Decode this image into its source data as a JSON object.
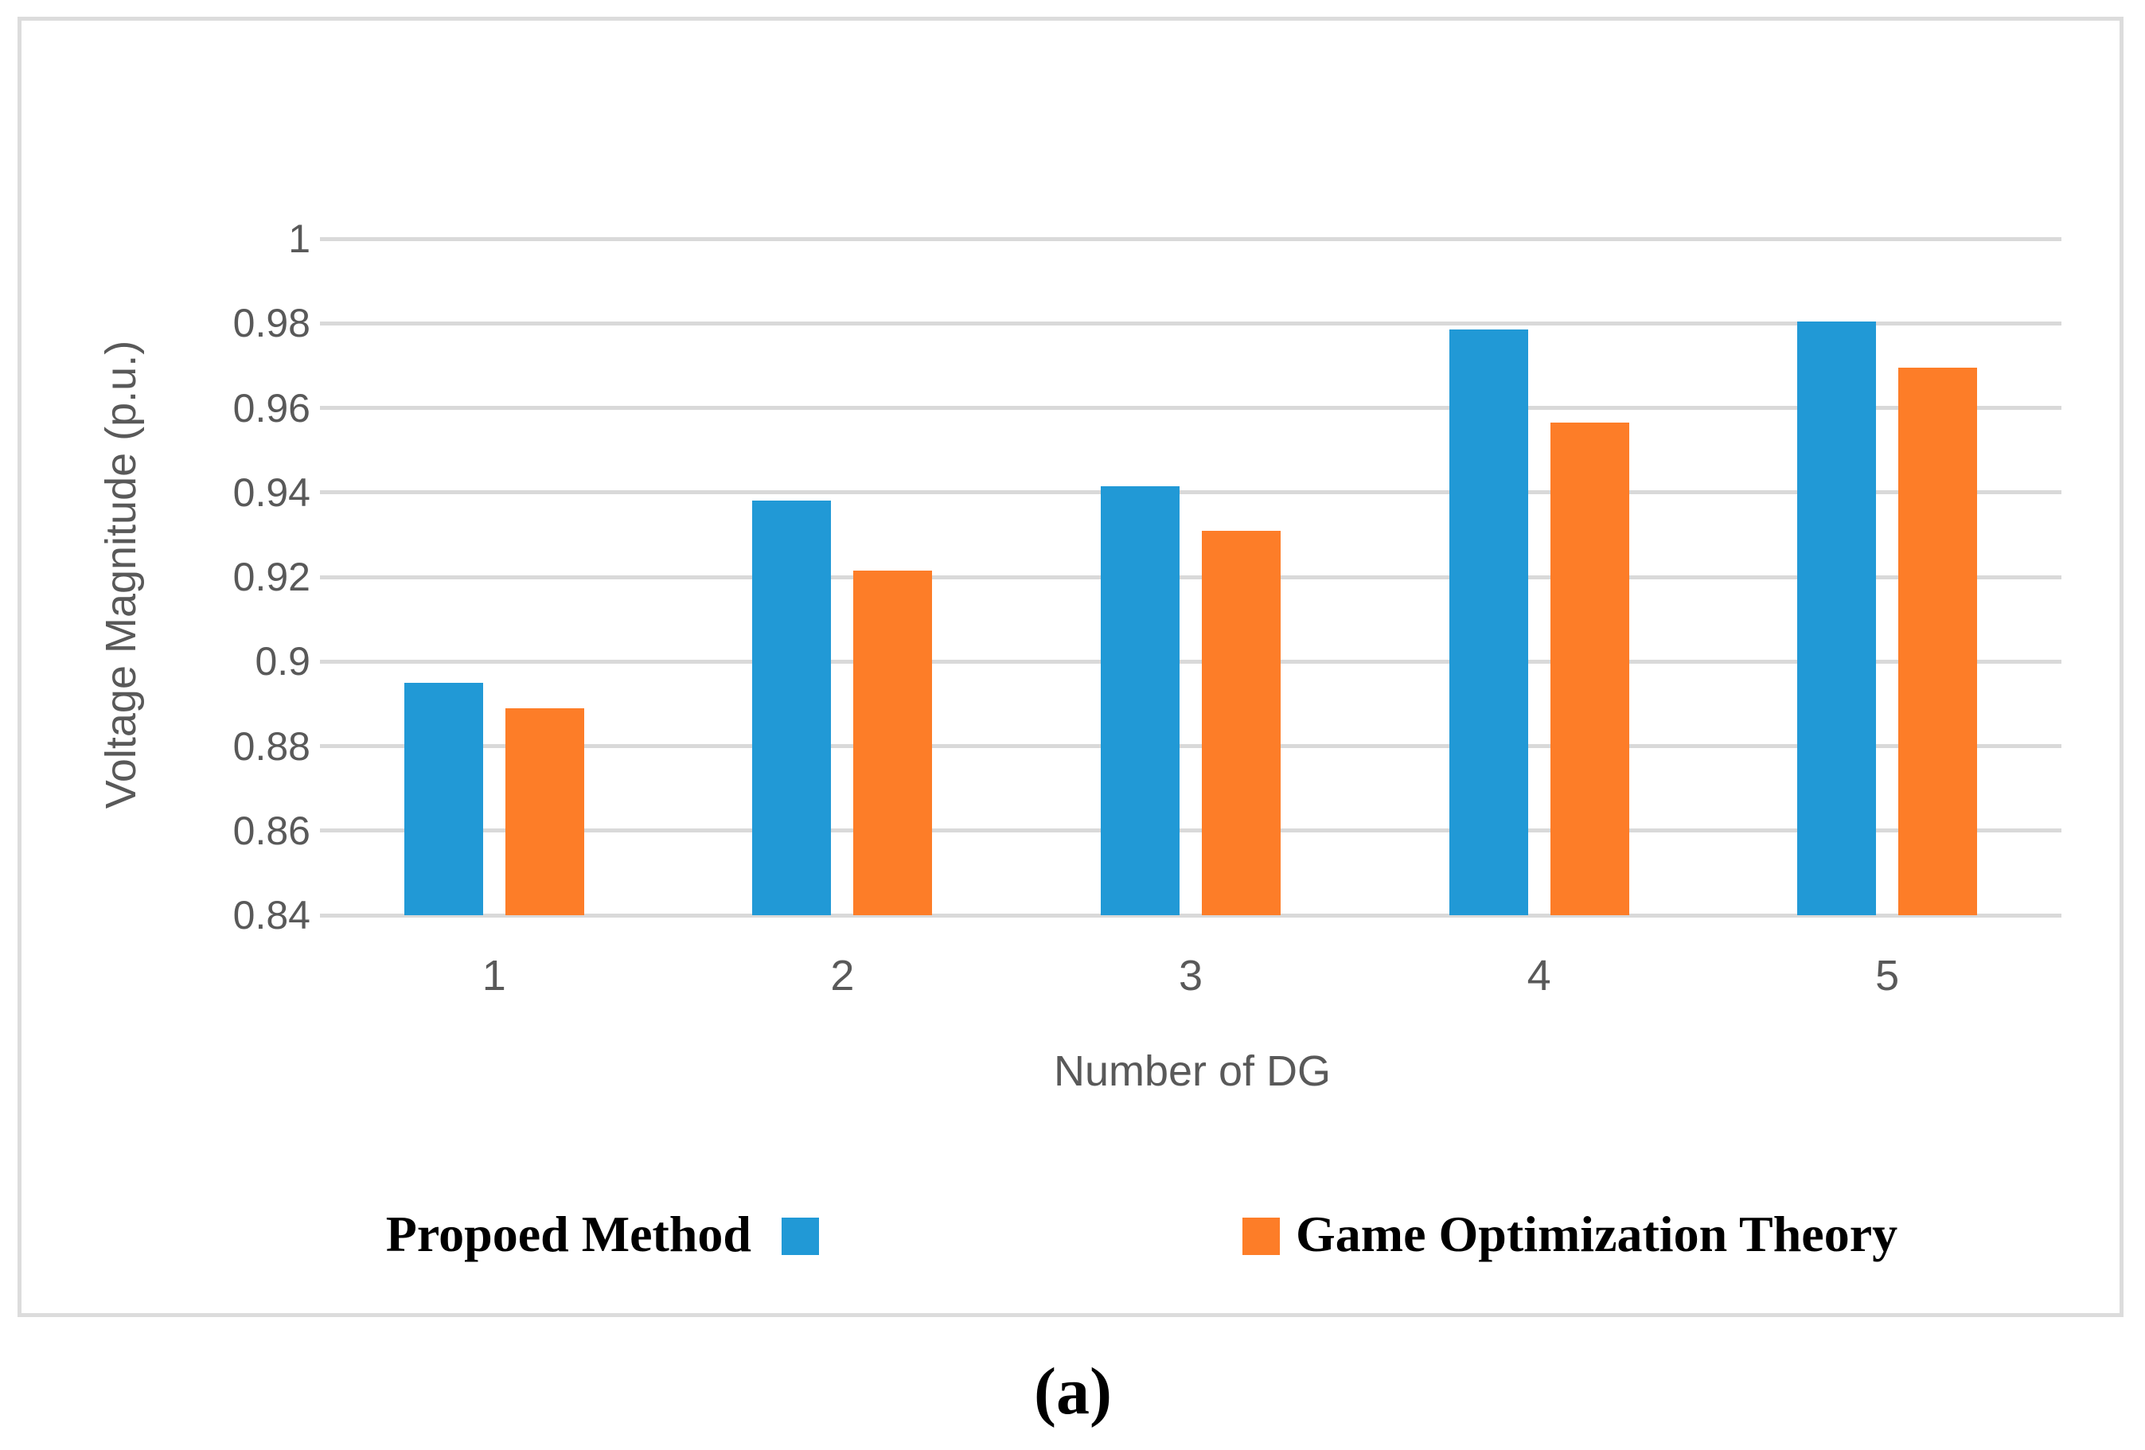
{
  "caption": "(a)",
  "legend": {
    "item1_label": "Propoed Method",
    "item2_label": "Game Optimization Theory"
  },
  "chart_data": {
    "type": "bar",
    "title": "",
    "xlabel": "Number of DG",
    "ylabel": "Voltage Magnitude (p.u.)",
    "categories": [
      "1",
      "2",
      "3",
      "4",
      "5"
    ],
    "series": [
      {
        "name": "Propoed Method",
        "color": "#2199d6",
        "values": [
          0.895,
          0.938,
          0.9415,
          0.9785,
          0.9805
        ]
      },
      {
        "name": "Game Optimization Theory",
        "color": "#fd7d28",
        "values": [
          0.889,
          0.9215,
          0.931,
          0.9565,
          0.9695
        ]
      }
    ],
    "ylim": [
      0.84,
      1.0
    ],
    "yticks": [
      {
        "label": "1",
        "value": 1.0
      },
      {
        "label": "0.98",
        "value": 0.98
      },
      {
        "label": "0.96",
        "value": 0.96
      },
      {
        "label": "0.94",
        "value": 0.94
      },
      {
        "label": "0.92",
        "value": 0.92
      },
      {
        "label": "0.9",
        "value": 0.9
      },
      {
        "label": "0.88",
        "value": 0.88
      },
      {
        "label": "0.86",
        "value": 0.86
      },
      {
        "label": "0.84",
        "value": 0.84
      }
    ],
    "grid": true,
    "gridline_color": "#d9d9d9",
    "axis_text_color": "#595959",
    "legend_position": "bottom"
  }
}
